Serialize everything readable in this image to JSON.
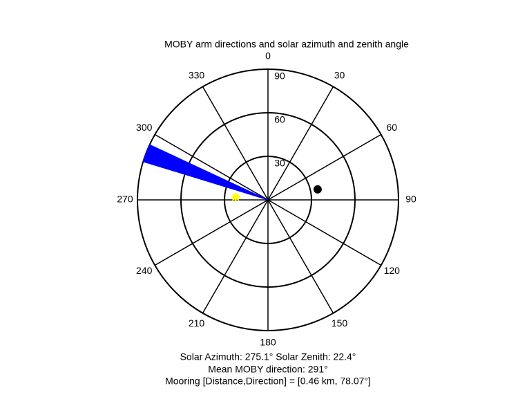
{
  "chart_data": {
    "type": "polar",
    "title": "MOBY arm directions and solar azimuth and zenith angle",
    "theta_ticks": [
      0,
      30,
      60,
      90,
      120,
      150,
      180,
      210,
      240,
      270,
      300,
      330
    ],
    "rlim": [
      0,
      90
    ],
    "rticks": [
      30,
      60,
      90
    ],
    "arm_sector": {
      "theta": [
        287,
        295
      ],
      "r": 90,
      "color": "#0000ff"
    },
    "sun": {
      "theta": 275.1,
      "r": 22.4,
      "color": "#ffff00"
    },
    "mooring": {
      "theta": 78.07,
      "r": 35,
      "color": "#000000"
    },
    "notes": [
      "Solar Azimuth: 275.1°   Solar Zenith: 22.4°",
      "Mean MOBY direction: 291°",
      "Mooring [Distance,Direction] = [0.46 km, 78.07°]"
    ]
  }
}
